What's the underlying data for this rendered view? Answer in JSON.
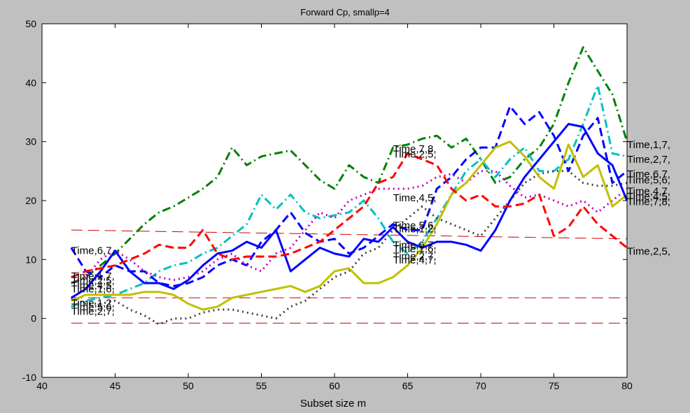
{
  "chart_data": {
    "type": "line",
    "title": "Forward Cp, smallp=4",
    "xlabel": "Subset size m",
    "ylabel": "",
    "xlim": [
      40,
      80
    ],
    "ylim": [
      -10,
      50
    ],
    "xticks": [
      40,
      45,
      50,
      55,
      60,
      65,
      70,
      75,
      80
    ],
    "yticks": [
      -10,
      0,
      10,
      20,
      30,
      40,
      50
    ],
    "grid": false,
    "x": [
      42,
      43,
      44,
      45,
      46,
      47,
      48,
      49,
      50,
      51,
      52,
      53,
      54,
      55,
      56,
      57,
      58,
      59,
      60,
      61,
      62,
      63,
      64,
      65,
      66,
      67,
      68,
      69,
      70,
      71,
      72,
      73,
      74,
      75,
      76,
      77,
      78,
      79,
      80
    ],
    "series": [
      {
        "name": "Time,1,7,",
        "color": "#008000",
        "dash": "dashdot",
        "width": 3,
        "values": [
          6,
          7,
          9,
          11,
          13.5,
          16,
          18,
          19,
          20.5,
          22,
          24,
          29,
          26,
          27.5,
          28,
          28.5,
          26,
          23.5,
          22,
          26,
          24,
          23,
          29,
          29.5,
          30.5,
          31,
          29,
          30.5,
          27,
          23,
          24,
          27,
          29,
          33,
          40,
          46,
          42,
          38,
          30
        ]
      },
      {
        "name": "Time,2,7,",
        "color": "#00c0c0",
        "dash": "dashdot",
        "width": 3,
        "values": [
          2,
          3,
          3.5,
          4,
          5,
          6,
          8,
          9,
          9.5,
          11,
          12,
          14,
          16,
          21,
          18.5,
          21,
          18,
          17,
          17.5,
          18,
          20,
          17,
          13,
          11,
          13,
          17,
          21,
          25,
          27,
          24,
          27,
          29,
          25,
          25,
          27,
          33,
          39.5,
          28,
          27.5
        ]
      },
      {
        "name": "Time,6,7,",
        "color": "#0000ff",
        "dash": "dashed",
        "width": 3,
        "values": [
          12,
          8,
          7,
          9,
          8,
          8,
          6,
          5.5,
          6,
          7,
          9,
          10,
          9,
          13,
          15,
          18,
          14.5,
          13,
          13.5,
          11,
          12,
          14,
          16,
          15,
          15,
          22,
          24,
          27,
          29,
          29,
          36,
          33,
          35,
          31,
          25,
          31,
          34,
          23,
          25
        ]
      },
      {
        "name": "Time,5,6,",
        "color": "#c000c0",
        "dash": "dotted",
        "width": 3,
        "values": [
          6,
          7,
          10,
          11.5,
          10,
          8,
          7,
          6.5,
          7,
          8,
          10,
          11,
          9,
          8,
          11,
          12,
          15,
          18,
          17,
          20,
          21,
          22,
          22,
          22,
          22.5,
          24,
          24.5,
          23,
          25,
          25,
          22.5,
          20.5,
          21,
          20,
          19,
          20,
          18,
          20,
          22
        ]
      },
      {
        "name": "Time,4,7,",
        "color": "#404040",
        "dash": "dotted",
        "width": 3,
        "values": [
          3.5,
          2.5,
          2.5,
          3,
          1.5,
          0.5,
          -1,
          0,
          0,
          1,
          1.5,
          1.5,
          1,
          0.5,
          0,
          2,
          3,
          5,
          7,
          8,
          11,
          12,
          15,
          17,
          19,
          17,
          16,
          15,
          14,
          17,
          20,
          23,
          24.5,
          25,
          25,
          23,
          22.5,
          22.5,
          23
        ]
      },
      {
        "name": "Time,4,5,",
        "color": "#c0c000",
        "dash": "solid",
        "width": 3,
        "values": [
          3,
          4,
          4,
          4,
          4,
          4.5,
          4.5,
          4,
          2.5,
          1.5,
          2,
          3.5,
          4,
          4.5,
          5,
          5.5,
          4.5,
          5.5,
          8,
          8.5,
          6,
          6,
          7,
          9,
          12,
          16,
          21,
          23,
          26,
          29,
          30,
          27.5,
          24,
          22,
          29.5,
          24,
          26,
          19,
          21
        ]
      },
      {
        "name": "Time,7,8,",
        "color": "#0000ff",
        "dash": "solid",
        "width": 3,
        "values": [
          3.5,
          5,
          8,
          11.5,
          8,
          6,
          6,
          5,
          6.5,
          9,
          11,
          11.5,
          13,
          12,
          15,
          8,
          10,
          12,
          11,
          10.5,
          13.5,
          13,
          15.5,
          13,
          12,
          13,
          13,
          12.5,
          11.5,
          15,
          20,
          24,
          27,
          30,
          33,
          32.5,
          28,
          26,
          20
        ]
      },
      {
        "name": "Time,2,5,",
        "color": "#ff0000",
        "dash": "dashed",
        "width": 3,
        "values": [
          7,
          8,
          8.5,
          9,
          10,
          11,
          12.5,
          12,
          12,
          15,
          11,
          10,
          10.5,
          10.5,
          10.5,
          11,
          12,
          13,
          15,
          17,
          19,
          23,
          24,
          28,
          27,
          26,
          22,
          20,
          21,
          19,
          19,
          19.5,
          21,
          14,
          15.5,
          19,
          16,
          14,
          12
        ]
      }
    ],
    "reference_lines": [
      {
        "y_start": 15,
        "y_end": 13.5,
        "color": "#cc0000",
        "dash": "longdash"
      },
      {
        "y_start": 3.5,
        "y_end": 3.5,
        "color": "#cc0000",
        "dash": "longdash"
      },
      {
        "y_start": -0.8,
        "y_end": -0.8,
        "color": "#cc0000",
        "dash": "longdash"
      }
    ],
    "annotations": [
      {
        "text": "Time,6,7,",
        "x": 42,
        "y": 11.5
      },
      {
        "text": "Time,1,7,",
        "x": 42,
        "y": 7.2
      },
      {
        "text": "Time,2,5,",
        "x": 42,
        "y": 6.4
      },
      {
        "text": "Time,4,5,",
        "x": 42,
        "y": 5.6
      },
      {
        "text": "Time,1,6,",
        "x": 42,
        "y": 5.0
      },
      {
        "text": "Time,1,2,",
        "x": 42,
        "y": 2.6
      },
      {
        "text": "Time,5,6,",
        "x": 42,
        "y": 1.9
      },
      {
        "text": "Time,2,7,",
        "x": 42,
        "y": 1.2
      },
      {
        "text": "Time,7,8,",
        "x": 64,
        "y": 28.8
      },
      {
        "text": "Time,2,5,",
        "x": 64,
        "y": 27.9
      },
      {
        "text": "Time,4,5,",
        "x": 64,
        "y": 20.5
      },
      {
        "text": "Time,5,6,",
        "x": 64,
        "y": 15.8
      },
      {
        "text": "Time,1,2,",
        "x": 64,
        "y": 15.2
      },
      {
        "text": "Time,6,7,",
        "x": 64,
        "y": 12.5
      },
      {
        "text": "Time,1,6,",
        "x": 64,
        "y": 11.8
      },
      {
        "text": "Time,2,7,",
        "x": 64,
        "y": 10.6
      },
      {
        "text": "Time,4,7,",
        "x": 64,
        "y": 9.9
      },
      {
        "text": "Time,1,7,",
        "x": 80,
        "y": 29.5
      },
      {
        "text": "Time,2,7,",
        "x": 80,
        "y": 27
      },
      {
        "text": "Time,6,7,",
        "x": 80,
        "y": 24.5
      },
      {
        "text": "Time,5,6,",
        "x": 80,
        "y": 23.5
      },
      {
        "text": "Time,4,7,",
        "x": 80,
        "y": 21.6
      },
      {
        "text": "Time,4,5,",
        "x": 80,
        "y": 20.7
      },
      {
        "text": "Time,7,8,",
        "x": 80,
        "y": 19.8
      },
      {
        "text": "Time,2,5,",
        "x": 80,
        "y": 11.4
      }
    ]
  }
}
